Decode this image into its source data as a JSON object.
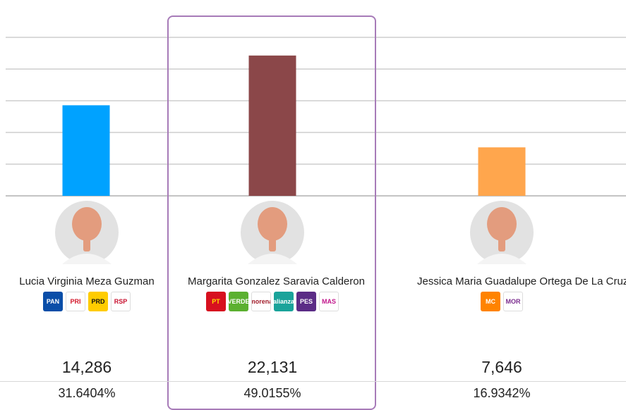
{
  "chart_data": {
    "type": "bar",
    "categories": [
      "Lucia Virginia Meza Guzman",
      "Margarita Gonzalez Saravia Calderon",
      "Jessica Maria Guadalupe Ortega De La Cruz"
    ],
    "values": [
      14286,
      22131,
      7646
    ],
    "percentages": [
      "31.6404%",
      "49.0155%",
      "16.9342%"
    ],
    "votes_labels": [
      "14,286",
      "22,131",
      "7,646"
    ],
    "colors": [
      "#00a2ff",
      "#8b4749",
      "#ffa64d"
    ],
    "ylim": [
      0,
      25000
    ],
    "grid": true,
    "highlighted": "Margarita Gonzalez Saravia Calderon"
  },
  "candidates": [
    {
      "name": "Lucia Virginia Meza Guzman",
      "votes": "14,286",
      "percent": "31.6404%",
      "parties": [
        {
          "label": "PAN",
          "bg": "#0a4ea8",
          "fg": "#ffffff"
        },
        {
          "label": "PRI",
          "bg": "#ffffff",
          "fg": "#d3172a"
        },
        {
          "label": "PRD",
          "bg": "#ffcc00",
          "fg": "#111111"
        },
        {
          "label": "RSP",
          "bg": "#ffffff",
          "fg": "#c8102e"
        }
      ]
    },
    {
      "name": "Margarita Gonzalez Saravia Calderon",
      "votes": "22,131",
      "percent": "49.0155%",
      "parties": [
        {
          "label": "PT",
          "bg": "#d7101f",
          "fg": "#ffdd00"
        },
        {
          "label": "VERDE",
          "bg": "#5bb030",
          "fg": "#ffffff"
        },
        {
          "label": "morena",
          "bg": "#ffffff",
          "fg": "#a21e2c"
        },
        {
          "label": "alianza",
          "bg": "#1aa39a",
          "fg": "#ffffff"
        },
        {
          "label": "PES",
          "bg": "#5b2c86",
          "fg": "#ffffff"
        },
        {
          "label": "MAS",
          "bg": "#ffffff",
          "fg": "#c2178c"
        }
      ]
    },
    {
      "name": "Jessica Maria Guadalupe Ortega De La Cruz",
      "votes": "7,646",
      "percent": "16.9342%",
      "parties": [
        {
          "label": "MC",
          "bg": "#ff8300",
          "fg": "#ffffff"
        },
        {
          "label": "MOR",
          "bg": "#ffffff",
          "fg": "#7b2d8e"
        }
      ]
    }
  ]
}
